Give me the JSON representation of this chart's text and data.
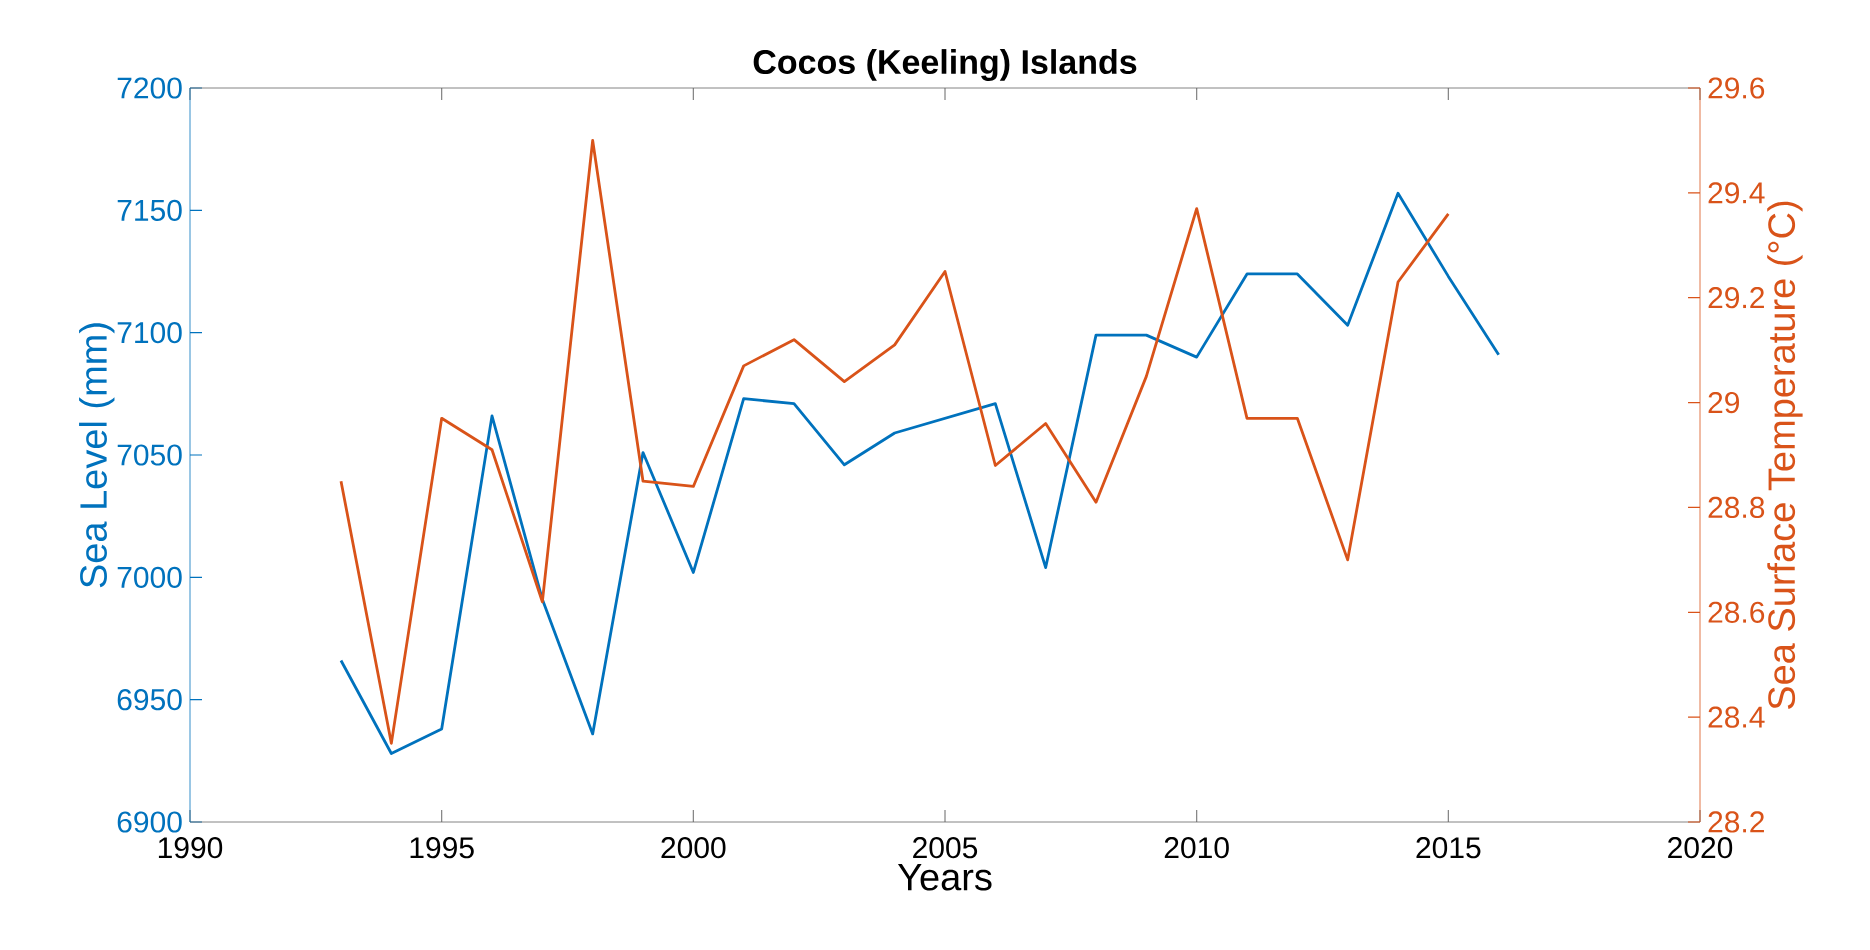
{
  "chart_data": {
    "type": "line",
    "title": "Cocos (Keeling) Islands",
    "xlabel": "Years",
    "ylabel": "Sea Level (mm)",
    "y2label": "Sea Surface Temperature (°C)",
    "x": [
      1993,
      1994,
      1995,
      1996,
      1997,
      1998,
      1999,
      2000,
      2001,
      2002,
      2003,
      2004,
      2005,
      2006,
      2007,
      2008,
      2009,
      2010,
      2011,
      2012,
      2013,
      2014,
      2015,
      2016
    ],
    "series": [
      {
        "color": "#0072bd",
        "values": [
          6966,
          6928,
          6938,
          7066,
          6991,
          6936,
          7051,
          7002,
          7073,
          7071,
          7046,
          7059,
          7065,
          7071,
          7004,
          7099,
          7099,
          7090,
          7124,
          7124,
          7103,
          7157,
          7123,
          7091
        ]
      },
      {
        "color": "#d95319",
        "axis": "y2",
        "values": [
          28.85,
          28.35,
          28.97,
          28.91,
          28.62,
          29.5,
          28.85,
          28.84,
          29.07,
          29.12,
          29.04,
          29.11,
          29.25,
          28.88,
          28.96,
          28.81,
          29.05,
          29.37,
          28.97,
          28.97,
          28.7,
          29.23,
          29.36,
          null
        ]
      }
    ],
    "xlim": [
      1990,
      2020
    ],
    "xticks": [
      1990,
      1995,
      2000,
      2005,
      2010,
      2015,
      2020
    ],
    "ylim": [
      6900,
      7200
    ],
    "yticks": [
      6900,
      6950,
      7000,
      7050,
      7100,
      7150,
      7200
    ],
    "y2lim": [
      28.2,
      29.6
    ],
    "y2ticks": [
      28.2,
      28.4,
      28.6,
      28.8,
      29,
      29.2,
      29.4,
      29.6
    ]
  }
}
